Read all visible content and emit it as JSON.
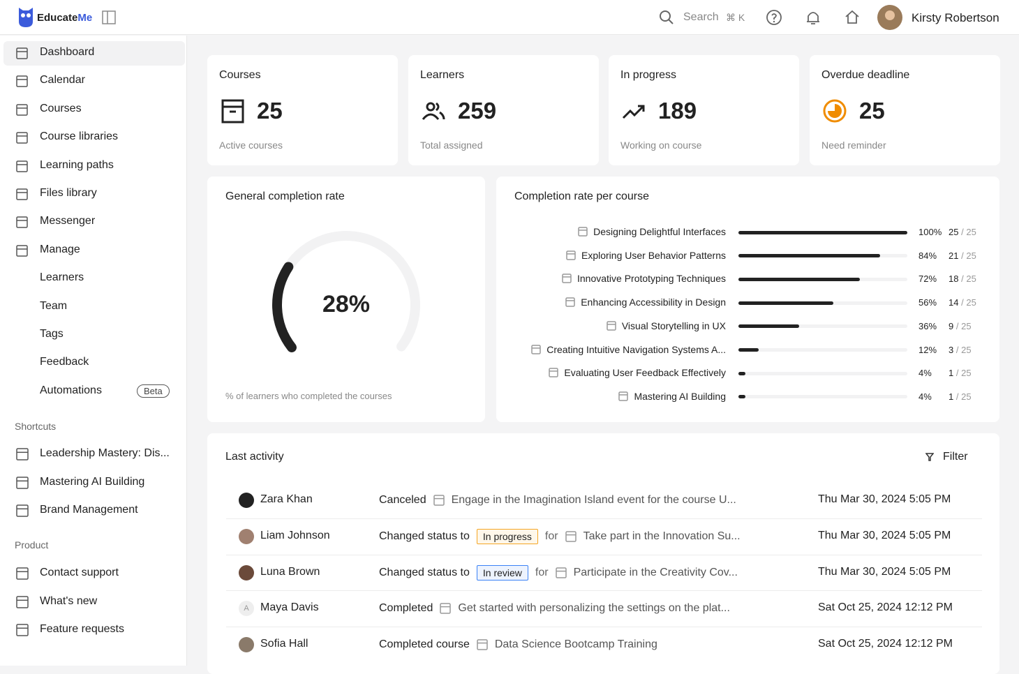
{
  "header": {
    "brand_main": "Educate",
    "brand_accent": "Me",
    "search": "Search",
    "shortcut": "⌘ K",
    "user": "Kirsty Robertson"
  },
  "sidebar": {
    "items": [
      "Dashboard",
      "Calendar",
      "Courses",
      "Course libraries",
      "Learning paths",
      "Files library",
      "Messenger",
      "Manage"
    ],
    "sub_items": [
      "Learners",
      "Team",
      "Tags",
      "Feedback",
      "Automations"
    ],
    "badge": "Beta",
    "shortcuts_title": "Shortcuts",
    "shortcuts": [
      "Leadership Mastery: Dis...",
      "Mastering AI Building",
      "Brand Management"
    ],
    "product_title": "Product",
    "product": [
      "Contact support",
      "What's new",
      "Feature requests"
    ]
  },
  "stats": [
    {
      "title": "Courses",
      "value": 25,
      "caption": "Active courses"
    },
    {
      "title": "Learners",
      "value": 259,
      "caption": "Total assigned"
    },
    {
      "title": "In progress",
      "value": 189,
      "caption": "Working on course"
    },
    {
      "title": "Overdue deadline",
      "value": 25,
      "caption": "Need reminder"
    }
  ],
  "completion": {
    "title": "General completion rate",
    "value": 28,
    "value_label": "28%",
    "caption": "% of learners who completed the courses"
  },
  "per_course": {
    "title": "Completion rate per course",
    "separator": "/",
    "rows": [
      {
        "name": "Designing Delightful Interfaces",
        "percent": 100,
        "percent_label": "100%",
        "done": 25,
        "total": 25
      },
      {
        "name": "Exploring User Behavior Patterns",
        "percent": 84,
        "percent_label": "84%",
        "done": 21,
        "total": 25
      },
      {
        "name": "Innovative Prototyping Techniques",
        "percent": 72,
        "percent_label": "72%",
        "done": 18,
        "total": 25
      },
      {
        "name": "Enhancing Accessibility in Design",
        "percent": 56,
        "percent_label": "56%",
        "done": 14,
        "total": 25
      },
      {
        "name": "Visual Storytelling in UX",
        "percent": 36,
        "percent_label": "36%",
        "done": 9,
        "total": 25
      },
      {
        "name": "Creating Intuitive Navigation Systems A...",
        "percent": 12,
        "percent_label": "12%",
        "done": 3,
        "total": 25
      },
      {
        "name": "Evaluating User Feedback Effectively",
        "percent": 4,
        "percent_label": "4%",
        "done": 1,
        "total": 25
      },
      {
        "name": "Mastering AI Building",
        "percent": 4,
        "percent_label": "4%",
        "done": 1,
        "total": 25
      }
    ]
  },
  "activity": {
    "title": "Last activity",
    "filter": "Filter",
    "rows": [
      {
        "user": "Zara Khan",
        "action": "Canceled",
        "target": "Engage in the Imagination Island event for the course U...",
        "date": "Thu Mar 30, 2024 5:05 PM"
      },
      {
        "user": "Liam Johnson",
        "action": "Changed status to",
        "status": "In progress",
        "status_color": "#f5a623",
        "connector": "for",
        "target": "Take part in the Innovation Su...",
        "date": "Thu Mar 30, 2024 5:05 PM"
      },
      {
        "user": "Luna Brown",
        "action": "Changed status to",
        "status": "In review",
        "status_color": "#3b82f6",
        "connector": "for",
        "target": "Participate in the Creativity Cov...",
        "date": "Thu Mar 30, 2024 5:05 PM"
      },
      {
        "user": "Maya Davis",
        "initial": "A",
        "action": "Completed",
        "target": "Get started with personalizing the settings on the plat...",
        "date": "Sat Oct 25, 2024 12:12 PM"
      },
      {
        "user": "Sofia Hall",
        "action": "Completed course",
        "target": "Data Science Bootcamp Training",
        "date": "Sat Oct 25, 2024 12:12 PM"
      }
    ]
  }
}
